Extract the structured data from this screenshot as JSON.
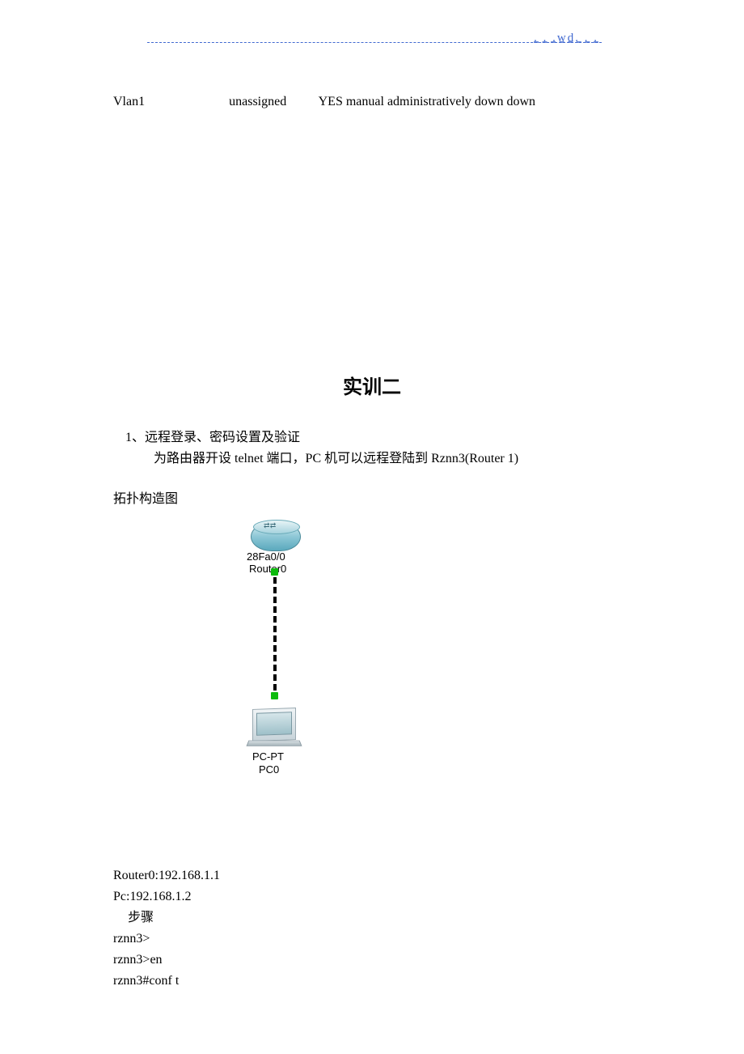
{
  "header": {
    "right_text": ". . .wd. . .",
    "line_color": "#4169d0"
  },
  "interface_row": {
    "name": "Vlan1",
    "ip": "unassigned",
    "ok": "YES",
    "method": "manual",
    "status": "administratively down",
    "protocol": "down"
  },
  "section": {
    "title": "实训二",
    "item1": "1、远程登录、密码设置及验证",
    "item1_detail": "为路由器开设 telnet 端口，PC 机可以远程登陆到 Rznn3(Router 1)",
    "topo_label": "拓扑构造图"
  },
  "diagram": {
    "router": {
      "port_label": "28Fa0/0",
      "name": "Router0",
      "body_color_top": "#d8edf2",
      "body_color_bottom": "#5ba9bd",
      "border_color": "#4a8a9a"
    },
    "link": {
      "style": "dashed",
      "color": "#000000",
      "port_dot_color": "#0dbb0d"
    },
    "pc": {
      "type_label": "PC-PT",
      "name": "PC0",
      "monitor_color": "#c8d4da",
      "screen_color": "#9ec0c9"
    }
  },
  "config": {
    "router_ip_line": "Router0:192.168.1.1",
    "pc_ip_line": "Pc:192.168.1.2",
    "step_label": "步骤",
    "cmd1": "rznn3>",
    "cmd2": "rznn3>en",
    "cmd3": "rznn3#conf t"
  }
}
